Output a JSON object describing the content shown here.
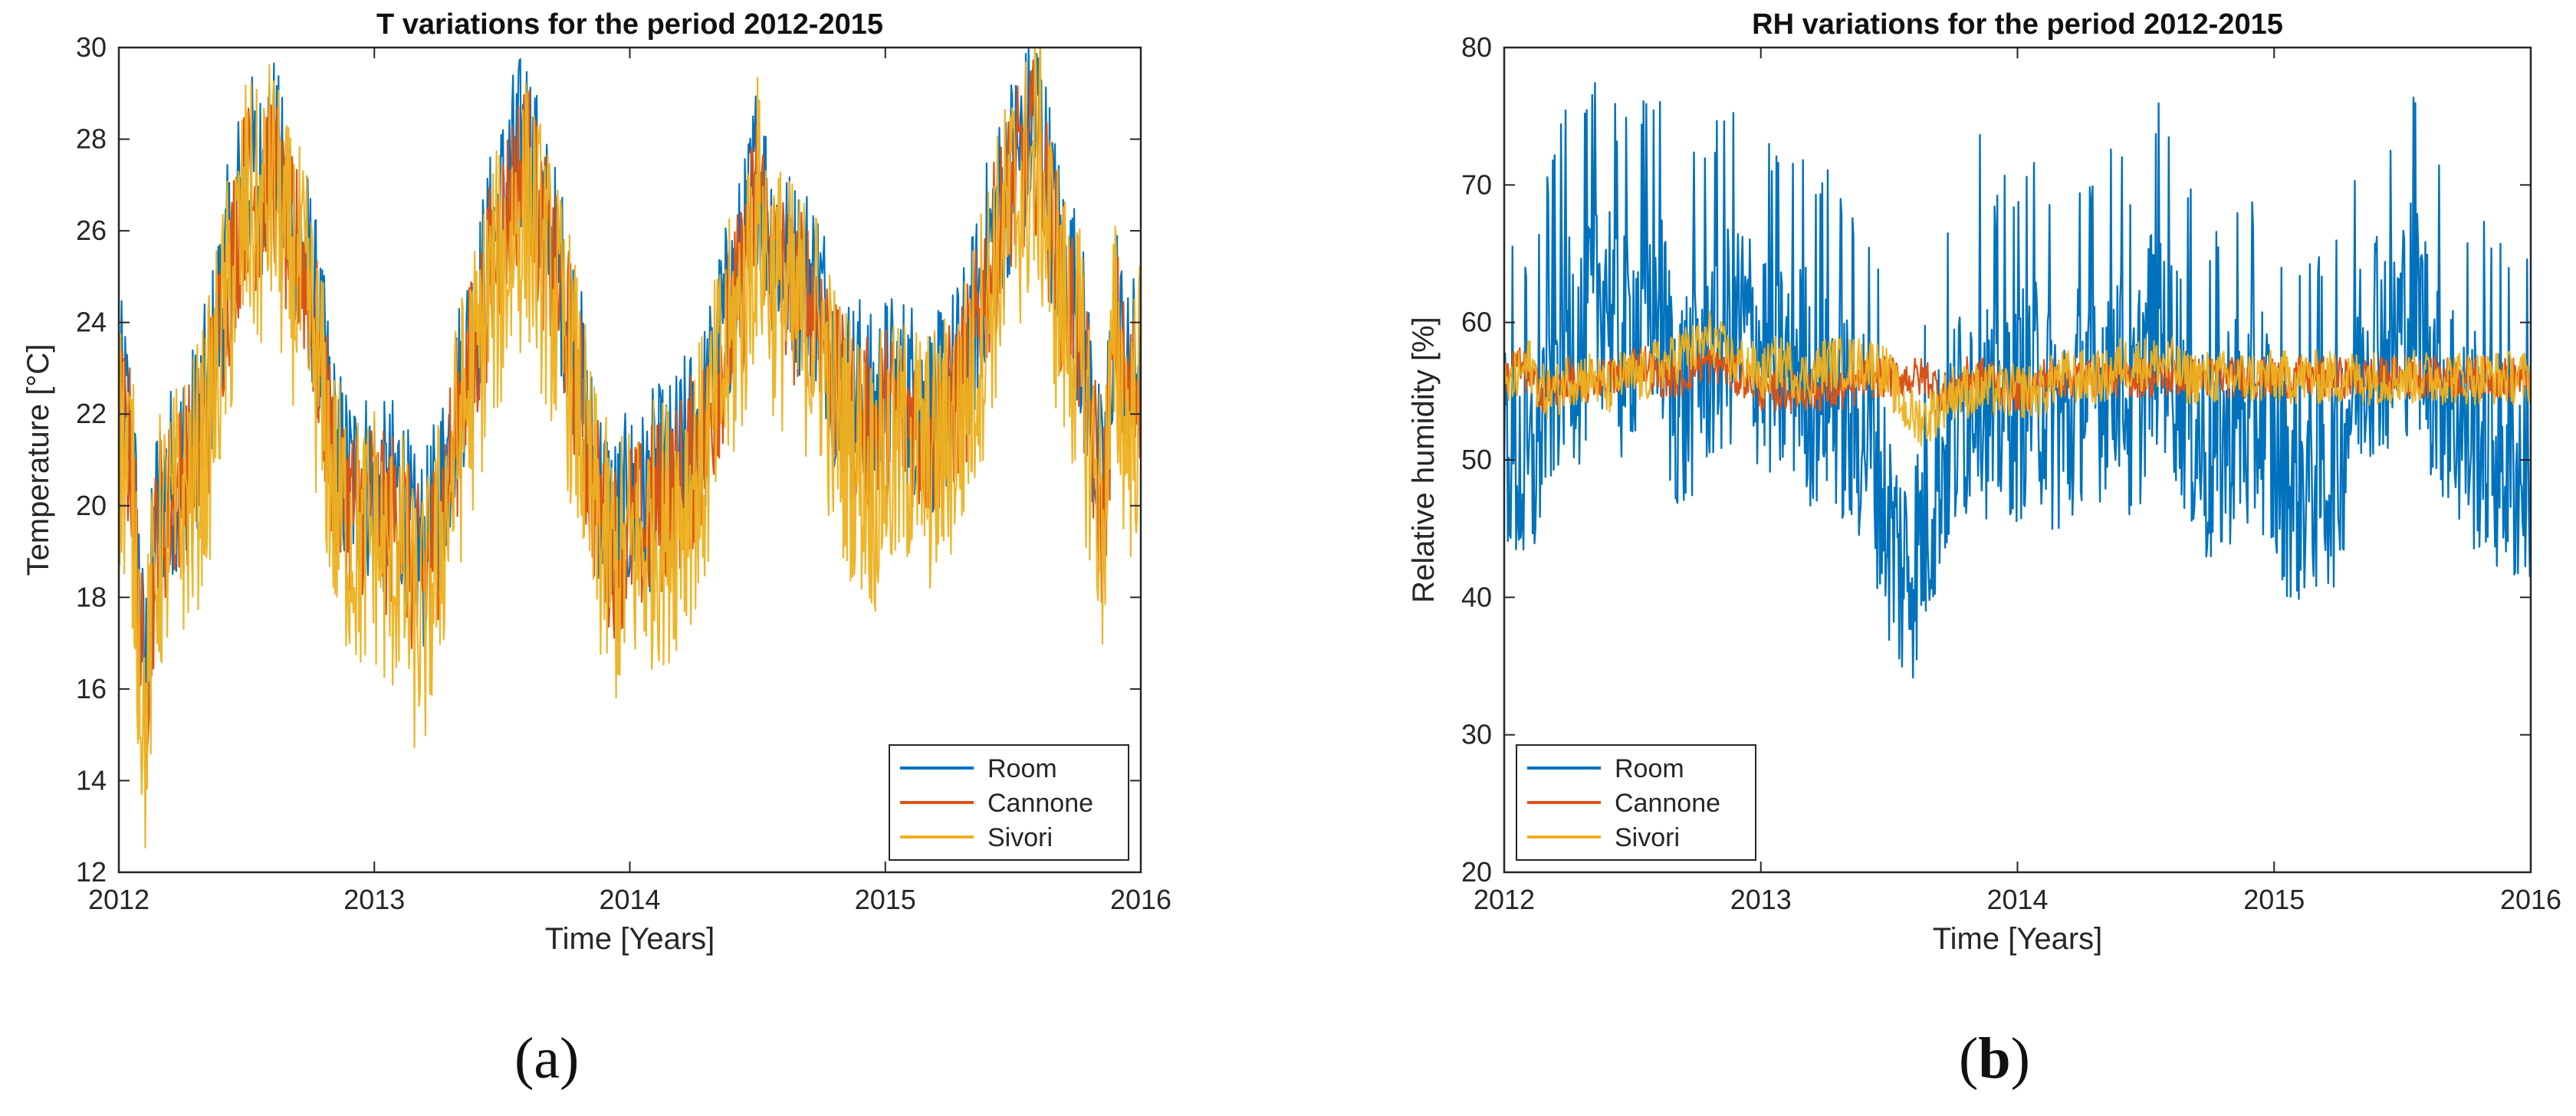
{
  "panels": [
    {
      "label_open": "(",
      "label_letter": "a",
      "label_close": ")"
    },
    {
      "label_open": "(",
      "label_letter": "b",
      "label_close": ")"
    }
  ],
  "chart_data": [
    {
      "type": "line",
      "title": "T variations for the period 2012-2015",
      "xlabel": "Time [Years]",
      "ylabel": "Temperature [°C]",
      "xlim": [
        2012,
        2016
      ],
      "ylim": [
        12,
        30
      ],
      "xticks": [
        2012,
        2013,
        2014,
        2015,
        2016
      ],
      "yticks": [
        12,
        14,
        16,
        18,
        20,
        22,
        24,
        26,
        28,
        30
      ],
      "legend_position": "bottom-right",
      "x": [
        2012.0,
        2012.05,
        2012.1,
        2012.15,
        2012.2,
        2012.25,
        2012.3,
        2012.35,
        2012.4,
        2012.45,
        2012.5,
        2012.55,
        2012.6,
        2012.65,
        2012.7,
        2012.75,
        2012.8,
        2012.85,
        2012.9,
        2012.95,
        2013.0,
        2013.05,
        2013.1,
        2013.15,
        2013.2,
        2013.25,
        2013.3,
        2013.35,
        2013.4,
        2013.45,
        2013.5,
        2013.55,
        2013.6,
        2013.65,
        2013.7,
        2013.75,
        2013.8,
        2013.85,
        2013.9,
        2013.95,
        2014.0,
        2014.05,
        2014.1,
        2014.15,
        2014.2,
        2014.25,
        2014.3,
        2014.35,
        2014.4,
        2014.45,
        2014.5,
        2014.55,
        2014.6,
        2014.65,
        2014.7,
        2014.75,
        2014.8,
        2014.85,
        2014.9,
        2014.95,
        2015.0,
        2015.05,
        2015.1,
        2015.15,
        2015.2,
        2015.25,
        2015.3,
        2015.35,
        2015.4,
        2015.45,
        2015.5,
        2015.55,
        2015.6,
        2015.65,
        2015.7,
        2015.75,
        2015.8,
        2015.85,
        2015.9,
        2015.95,
        2016.0
      ],
      "series": [
        {
          "name": "Room",
          "color": "#0072bd",
          "values": [
            22.5,
            21.5,
            16.0,
            20.0,
            20.5,
            21.0,
            21.5,
            22.5,
            24.5,
            26.0,
            27.5,
            27.0,
            28.0,
            26.5,
            26.0,
            25.0,
            23.0,
            21.0,
            20.5,
            20.5,
            20.5,
            20.0,
            20.5,
            19.0,
            19.0,
            20.0,
            21.5,
            23.0,
            24.0,
            25.5,
            26.5,
            27.5,
            28.0,
            26.5,
            25.5,
            24.5,
            23.0,
            21.0,
            20.0,
            19.5,
            20.0,
            20.0,
            20.5,
            20.5,
            21.0,
            21.5,
            22.0,
            23.5,
            24.5,
            25.5,
            27.5,
            26.0,
            25.5,
            25.0,
            25.0,
            24.5,
            23.0,
            22.5,
            22.5,
            22.0,
            22.5,
            22.5,
            22.5,
            22.0,
            22.0,
            22.5,
            23.0,
            24.0,
            25.5,
            26.5,
            27.5,
            28.0,
            28.5,
            26.5,
            25.0,
            24.5,
            22.5,
            20.0,
            24.5,
            22.5,
            23.5
          ]
        },
        {
          "name": "Cannone",
          "color": "#d95319",
          "values": [
            22.0,
            21.0,
            15.5,
            19.5,
            20.0,
            20.5,
            21.0,
            22.0,
            24.0,
            25.5,
            27.0,
            26.5,
            27.5,
            26.0,
            25.5,
            24.5,
            22.5,
            20.5,
            20.0,
            20.0,
            20.0,
            19.5,
            20.0,
            18.5,
            18.5,
            19.5,
            21.0,
            22.5,
            23.5,
            25.0,
            26.0,
            27.0,
            27.5,
            26.0,
            25.0,
            24.0,
            22.5,
            20.5,
            19.5,
            19.0,
            19.5,
            19.5,
            20.0,
            20.0,
            20.5,
            21.0,
            21.5,
            23.0,
            24.0,
            25.0,
            27.0,
            25.5,
            25.0,
            24.5,
            24.5,
            24.0,
            22.5,
            22.0,
            22.0,
            21.5,
            22.0,
            22.0,
            22.0,
            21.5,
            21.5,
            22.0,
            22.5,
            23.5,
            25.0,
            26.0,
            27.0,
            27.5,
            28.0,
            26.0,
            24.5,
            24.0,
            22.0,
            19.5,
            24.0,
            22.0,
            23.0
          ]
        },
        {
          "name": "Sivori",
          "color": "#edb120",
          "values": [
            21.5,
            20.5,
            15.0,
            19.0,
            19.5,
            20.0,
            20.5,
            21.5,
            23.5,
            25.0,
            26.5,
            26.0,
            27.0,
            25.5,
            25.0,
            24.0,
            22.0,
            20.0,
            19.5,
            19.0,
            19.5,
            18.5,
            19.0,
            17.5,
            17.5,
            19.0,
            20.5,
            22.0,
            23.0,
            24.5,
            25.0,
            26.0,
            26.5,
            25.5,
            24.5,
            23.5,
            22.0,
            20.0,
            19.0,
            18.5,
            19.0,
            19.0,
            19.5,
            19.5,
            20.0,
            20.5,
            21.0,
            22.5,
            23.5,
            24.5,
            26.5,
            25.0,
            24.5,
            24.0,
            24.0,
            23.5,
            22.0,
            21.5,
            21.0,
            20.5,
            21.0,
            21.0,
            21.5,
            21.0,
            21.0,
            21.5,
            22.0,
            23.0,
            24.5,
            25.5,
            26.5,
            27.0,
            27.5,
            25.5,
            24.0,
            23.5,
            21.5,
            19.5,
            23.5,
            21.5,
            22.5
          ]
        }
      ]
    },
    {
      "type": "line",
      "title": "RH variations for the period 2012-2015",
      "xlabel": "Time [Years]",
      "ylabel": "Relative humidity [%]",
      "xlim": [
        2012,
        2016
      ],
      "ylim": [
        20,
        80
      ],
      "xticks": [
        2012,
        2013,
        2014,
        2015,
        2016
      ],
      "yticks": [
        20,
        30,
        40,
        50,
        60,
        70,
        80
      ],
      "legend_position": "bottom-left",
      "x": [
        2012.0,
        2012.05,
        2012.1,
        2012.15,
        2012.2,
        2012.25,
        2012.3,
        2012.35,
        2012.4,
        2012.45,
        2012.5,
        2012.55,
        2012.6,
        2012.65,
        2012.7,
        2012.75,
        2012.8,
        2012.85,
        2012.9,
        2012.95,
        2013.0,
        2013.05,
        2013.1,
        2013.15,
        2013.2,
        2013.25,
        2013.3,
        2013.35,
        2013.4,
        2013.45,
        2013.5,
        2013.55,
        2013.6,
        2013.65,
        2013.7,
        2013.75,
        2013.8,
        2013.85,
        2013.9,
        2013.95,
        2014.0,
        2014.05,
        2014.1,
        2014.15,
        2014.2,
        2014.25,
        2014.3,
        2014.35,
        2014.4,
        2014.45,
        2014.5,
        2014.55,
        2014.6,
        2014.65,
        2014.7,
        2014.75,
        2014.8,
        2014.85,
        2014.9,
        2014.95,
        2015.0,
        2015.05,
        2015.1,
        2015.15,
        2015.2,
        2015.25,
        2015.3,
        2015.35,
        2015.4,
        2015.45,
        2015.5,
        2015.55,
        2015.6,
        2015.65,
        2015.7,
        2015.75,
        2015.8,
        2015.85,
        2015.9,
        2015.95,
        2016.0
      ],
      "series": [
        {
          "name": "Room",
          "color": "#0072bd",
          "values": [
            52,
            50,
            48,
            54,
            57,
            60,
            58,
            62,
            63,
            58,
            60,
            61,
            62,
            56,
            54,
            57,
            58,
            59,
            60,
            59,
            58,
            57,
            56,
            58,
            55,
            56,
            55,
            52,
            53,
            50,
            45,
            42,
            43,
            46,
            50,
            52,
            54,
            58,
            52,
            55,
            54,
            56,
            55,
            53,
            52,
            56,
            55,
            57,
            58,
            52,
            58,
            60,
            58,
            55,
            52,
            50,
            51,
            54,
            52,
            54,
            50,
            49,
            48,
            49,
            49,
            50,
            55,
            58,
            60,
            58,
            60,
            62,
            58,
            56,
            54,
            52,
            52,
            51,
            50,
            49,
            50
          ]
        },
        {
          "name": "Cannone",
          "color": "#d95319",
          "values": [
            56,
            57,
            56,
            55,
            55,
            56,
            55,
            56,
            56,
            56,
            57,
            57,
            56,
            56,
            56,
            57,
            57,
            57,
            56,
            56,
            55,
            55,
            55,
            55,
            55,
            55,
            55,
            55,
            56,
            56,
            56,
            56,
            56,
            56,
            55,
            55,
            56,
            56,
            56,
            55,
            55,
            55,
            56,
            56,
            56,
            56,
            56,
            56,
            56,
            56,
            56,
            56,
            56,
            56,
            56,
            56,
            56,
            56,
            56,
            56,
            56,
            56,
            56,
            56,
            56,
            56,
            56,
            56,
            56,
            56,
            56,
            56,
            56,
            56,
            56,
            56,
            56,
            56,
            56,
            56,
            56
          ]
        },
        {
          "name": "Sivori",
          "color": "#edb120",
          "values": [
            55,
            56,
            57,
            55,
            55,
            56,
            56,
            56,
            55,
            56,
            56,
            56,
            57,
            57,
            58,
            58,
            59,
            58,
            57,
            57,
            56,
            57,
            57,
            56,
            56,
            57,
            57,
            57,
            57,
            57,
            56,
            54,
            53,
            53,
            54,
            55,
            55,
            55,
            55,
            55,
            55,
            55,
            55,
            56,
            56,
            56,
            56,
            56,
            57,
            57,
            57,
            57,
            57,
            56,
            56,
            56,
            56,
            56,
            56,
            56,
            56,
            56,
            56,
            56,
            56,
            56,
            56,
            56,
            56,
            56,
            56,
            56,
            56,
            56,
            56,
            56,
            56,
            56,
            56,
            56,
            56
          ]
        }
      ]
    }
  ]
}
